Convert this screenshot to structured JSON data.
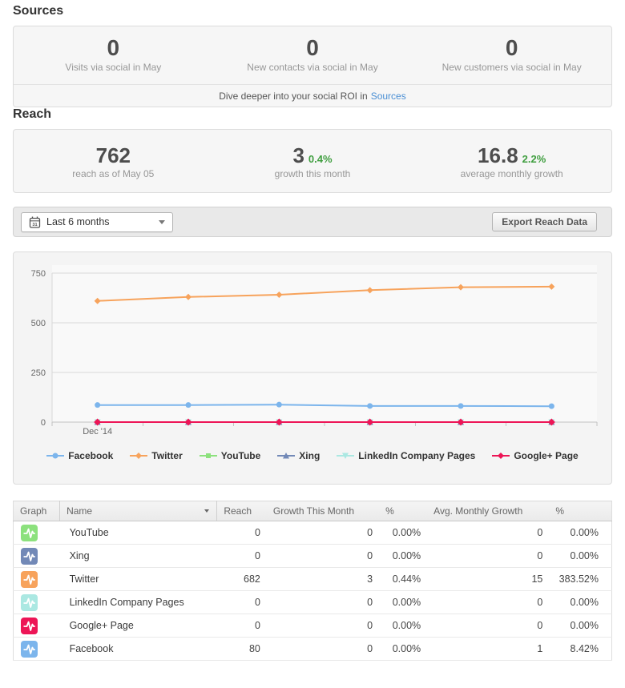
{
  "sources": {
    "heading": "Sources",
    "stats": [
      {
        "value": "0",
        "label": "Visits via social in May"
      },
      {
        "value": "0",
        "label": "New contacts via social in May"
      },
      {
        "value": "0",
        "label": "New customers via social in May"
      }
    ],
    "footer": {
      "text": "Dive deeper into your social ROI in",
      "link": "Sources"
    }
  },
  "reach": {
    "heading": "Reach",
    "stats": [
      {
        "value": "762",
        "pct": "",
        "label": "reach as of May 05"
      },
      {
        "value": "3",
        "pct": "0.4%",
        "label": "growth this month"
      },
      {
        "value": "16.8",
        "pct": "2.2%",
        "label": "average monthly growth"
      }
    ]
  },
  "toolbar": {
    "range_label": "Last 6 months",
    "calendar_day": "31",
    "export_label": "Export Reach Data",
    "icons": {
      "calendar": "calendar-icon",
      "caret": "caret-down-icon"
    }
  },
  "chart_data": {
    "type": "line",
    "categories": [
      "Dec '14",
      "",
      "",
      "",
      "",
      ""
    ],
    "series": [
      {
        "name": "Facebook",
        "color": "#7cb5ec",
        "marker": "circle",
        "values": [
          86,
          86,
          88,
          81,
          81,
          80
        ]
      },
      {
        "name": "Twitter",
        "color": "#f7a35c",
        "marker": "diamond",
        "values": [
          610,
          630,
          641,
          664,
          679,
          682
        ]
      },
      {
        "name": "YouTube",
        "color": "#8ce17d",
        "marker": "square",
        "values": [
          0,
          0,
          0,
          0,
          0,
          0
        ]
      },
      {
        "name": "Xing",
        "color": "#7289b7",
        "marker": "triangle",
        "values": [
          0,
          0,
          0,
          0,
          0,
          0
        ]
      },
      {
        "name": "LinkedIn Company Pages",
        "color": "#abe8e2",
        "marker": "triangle-down",
        "values": [
          0,
          0,
          0,
          0,
          0,
          0
        ]
      },
      {
        "name": "Google+ Page",
        "color": "#ed1556",
        "marker": "diamond",
        "values": [
          0,
          0,
          0,
          0,
          0,
          0
        ]
      }
    ],
    "title": "",
    "xlabel": "",
    "ylabel": "",
    "ylim": [
      0,
      750
    ],
    "yticks": [
      0,
      250,
      500,
      750
    ],
    "grid": true,
    "legend_position": "bottom"
  },
  "table": {
    "headers": [
      "Graph",
      "Name",
      "Reach",
      "Growth This Month",
      "%",
      "Avg. Monthly Growth",
      "%"
    ],
    "rows": [
      {
        "network": "YouTube",
        "color": "#8ce17d",
        "reach": "0",
        "growth": "0",
        "growth_pct": "0.00%",
        "avg_growth": "0",
        "avg_growth_pct": "0.00%"
      },
      {
        "network": "Xing",
        "color": "#7289b7",
        "reach": "0",
        "growth": "0",
        "growth_pct": "0.00%",
        "avg_growth": "0",
        "avg_growth_pct": "0.00%"
      },
      {
        "network": "Twitter",
        "color": "#f7a35c",
        "reach": "682",
        "growth": "3",
        "growth_pct": "0.44%",
        "avg_growth": "15",
        "avg_growth_pct": "383.52%"
      },
      {
        "network": "LinkedIn Company Pages",
        "color": "#abe8e2",
        "reach": "0",
        "growth": "0",
        "growth_pct": "0.00%",
        "avg_growth": "0",
        "avg_growth_pct": "0.00%"
      },
      {
        "network": "Google+ Page",
        "color": "#ed1556",
        "reach": "0",
        "growth": "0",
        "growth_pct": "0.00%",
        "avg_growth": "0",
        "avg_growth_pct": "0.00%"
      },
      {
        "network": "Facebook",
        "color": "#7cb5ec",
        "reach": "80",
        "growth": "0",
        "growth_pct": "0.00%",
        "avg_growth": "1",
        "avg_growth_pct": "8.42%"
      }
    ]
  }
}
